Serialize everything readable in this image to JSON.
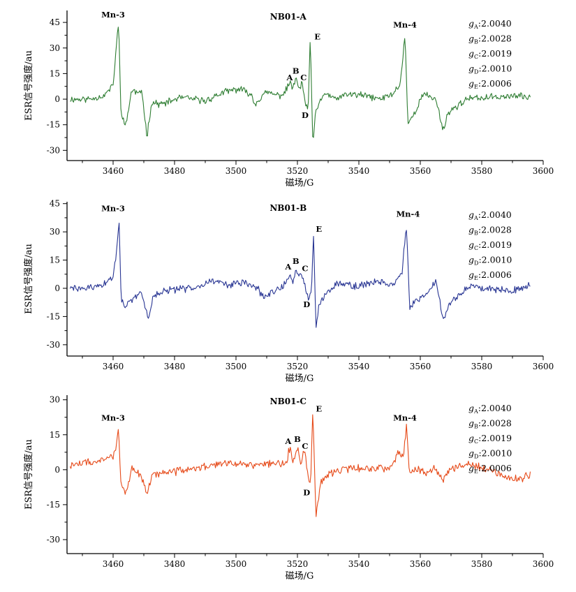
{
  "chart_data": [
    {
      "type": "line",
      "title": "NB01-A",
      "xlabel": "磁场/G",
      "ylabel": "ESR信号强度/au",
      "xlim": [
        3445,
        3600
      ],
      "ylim": [
        -36,
        52
      ],
      "xticks": [
        3460,
        3480,
        3500,
        3520,
        3540,
        3560,
        3580,
        3600
      ],
      "yticks": [
        -30,
        -15,
        0,
        15,
        30,
        45
      ],
      "color": "#2e7d32",
      "grid": false,
      "seed": 11,
      "noise": 1.6,
      "x": [
        3446,
        3452,
        3457,
        3460,
        3461,
        3461.8,
        3462.5,
        3464,
        3466,
        3469.5,
        3471,
        3472.5,
        3476,
        3482,
        3490,
        3496,
        3501,
        3505,
        3506,
        3507.5,
        3510,
        3514,
        3516,
        3517.5,
        3518.5,
        3519.5,
        3520.5,
        3521.5,
        3522.5,
        3523.5,
        3524.2,
        3525,
        3525.8,
        3527,
        3529,
        3532,
        3537,
        3542,
        3547,
        3551,
        3553.5,
        3555,
        3556,
        3557.5,
        3561,
        3565,
        3567.5,
        3569,
        3575,
        3582,
        3590,
        3596
      ],
      "values": [
        0,
        0,
        2,
        8,
        30,
        45,
        -5,
        -17,
        5,
        3,
        -22,
        -2,
        -3,
        1,
        -1,
        4,
        6,
        3,
        -3,
        0,
        4,
        2,
        4,
        10,
        6,
        13,
        5,
        10,
        -2,
        -6,
        36,
        -26,
        -10,
        -3,
        4,
        0,
        3,
        2,
        0,
        3,
        9,
        38,
        -15,
        -10,
        3,
        0,
        -18,
        -8,
        0,
        1,
        2,
        1
      ],
      "series": [
        {
          "name": ""
        }
      ],
      "annotations": {
        "peaks": [
          {
            "text": "Mn-3",
            "x": 3460,
            "y": 48
          },
          {
            "text": "Mn-4",
            "x": 3555,
            "y": 42
          },
          {
            "text": "A",
            "x": 3517.5,
            "y": 11
          },
          {
            "text": "B",
            "x": 3519.5,
            "y": 15
          },
          {
            "text": "C",
            "x": 3522,
            "y": 11
          },
          {
            "text": "D",
            "x": 3522.5,
            "y": -11
          },
          {
            "text": "E",
            "x": 3526.5,
            "y": 35
          }
        ],
        "g_values": [
          {
            "letter": "g",
            "sub": "A",
            "value": ":2.0040"
          },
          {
            "letter": "g",
            "sub": "B",
            "value": ":2.0028"
          },
          {
            "letter": "g",
            "sub": "C",
            "value": ":2.0019"
          },
          {
            "letter": "g",
            "sub": "D",
            "value": ":2.0010"
          },
          {
            "letter": "g",
            "sub": "E",
            "value": ":2.0006"
          }
        ]
      }
    },
    {
      "type": "line",
      "title": "NB01-B",
      "xlabel": "磁场/G",
      "ylabel": "ESR信号强度/au",
      "xlim": [
        3445,
        3600
      ],
      "ylim": [
        -36,
        46
      ],
      "xticks": [
        3460,
        3480,
        3500,
        3520,
        3540,
        3560,
        3580,
        3600
      ],
      "yticks": [
        -30,
        -15,
        0,
        15,
        30,
        45
      ],
      "color": "#283593",
      "grid": false,
      "seed": 29,
      "noise": 1.5,
      "x": [
        3446,
        3452,
        3457,
        3460,
        3461,
        3462,
        3462.6,
        3464,
        3466,
        3469,
        3471.5,
        3473,
        3478,
        3485,
        3492,
        3498,
        3503,
        3507,
        3509,
        3512,
        3515,
        3517.5,
        3518.5,
        3519.5,
        3520.5,
        3521.5,
        3522.5,
        3523.5,
        3524.5,
        3525.3,
        3526,
        3527,
        3529,
        3533,
        3540,
        3546,
        3551,
        3554,
        3555.5,
        3556.5,
        3558,
        3562,
        3565,
        3567.5,
        3570,
        3576,
        3583,
        3590,
        3595,
        3596
      ],
      "values": [
        0,
        0,
        2,
        6,
        18,
        36,
        -5,
        -10,
        -7,
        -2,
        -16,
        -4,
        -1,
        0,
        4,
        2,
        3,
        0,
        -5,
        -2,
        1,
        6,
        2,
        10,
        6,
        8,
        2,
        -6,
        -3,
        30,
        -23,
        -9,
        -3,
        3,
        1,
        4,
        2,
        8,
        33,
        -10,
        -8,
        -3,
        4,
        -16,
        -7,
        1,
        0,
        -1,
        1,
        3
      ],
      "series": [
        {
          "name": ""
        }
      ],
      "annotations": {
        "peaks": [
          {
            "text": "Mn-3",
            "x": 3460,
            "y": 41
          },
          {
            "text": "Mn-4",
            "x": 3556,
            "y": 38
          },
          {
            "text": "A",
            "x": 3517,
            "y": 10
          },
          {
            "text": "B",
            "x": 3519.5,
            "y": 13
          },
          {
            "text": "C",
            "x": 3522.5,
            "y": 9
          },
          {
            "text": "D",
            "x": 3523,
            "y": -10
          },
          {
            "text": "E",
            "x": 3527,
            "y": 30
          }
        ],
        "g_values": [
          {
            "letter": "g",
            "sub": "A",
            "value": ":2.0040"
          },
          {
            "letter": "g",
            "sub": "B",
            "value": ":2.0028"
          },
          {
            "letter": "g",
            "sub": "C",
            "value": ":2.0019"
          },
          {
            "letter": "g",
            "sub": "D",
            "value": ":2.0010"
          },
          {
            "letter": "g",
            "sub": "E",
            "value": ":2.0006"
          }
        ]
      }
    },
    {
      "type": "line",
      "title": "NB01-C",
      "xlabel": "磁场/G",
      "ylabel": "ESR信号强度/au",
      "xlim": [
        3445,
        3600
      ],
      "ylim": [
        -36,
        32
      ],
      "xticks": [
        3460,
        3480,
        3500,
        3520,
        3540,
        3560,
        3580,
        3600
      ],
      "yticks": [
        -30,
        -15,
        0,
        15,
        30
      ],
      "color": "#e64a19",
      "grid": false,
      "seed": 47,
      "noise": 1.4,
      "x": [
        3446,
        3452,
        3457,
        3460,
        3461,
        3461.8,
        3462.4,
        3464,
        3466,
        3469,
        3471,
        3473,
        3478,
        3485,
        3492,
        3498,
        3505,
        3511,
        3515,
        3516.8,
        3517.5,
        3518.5,
        3520,
        3521.2,
        3522.3,
        3523.5,
        3524.3,
        3525,
        3526,
        3527.5,
        3529,
        3533,
        3540,
        3546,
        3551,
        3553,
        3554.5,
        3555.5,
        3556.5,
        3558,
        3562,
        3565,
        3567.5,
        3570,
        3576,
        3583,
        3588,
        3592,
        3596
      ],
      "values": [
        2,
        3,
        4,
        6,
        10,
        19,
        -4,
        -10,
        0,
        -2,
        -10,
        -2,
        -1,
        0,
        2,
        3,
        2,
        3,
        2,
        5,
        10,
        3,
        10,
        3,
        9,
        -3,
        -7,
        26,
        -21,
        -6,
        -3,
        0,
        1,
        0,
        2,
        8,
        6,
        19,
        -2,
        0,
        -1,
        1,
        -5,
        1,
        2,
        0,
        -3,
        -4,
        -2
      ],
      "series": [
        {
          "name": ""
        }
      ],
      "annotations": {
        "peaks": [
          {
            "text": "Mn-3",
            "x": 3460,
            "y": 21
          },
          {
            "text": "Mn-4",
            "x": 3555,
            "y": 21
          },
          {
            "text": "A",
            "x": 3517,
            "y": 11
          },
          {
            "text": "B",
            "x": 3520,
            "y": 12
          },
          {
            "text": "C",
            "x": 3522.5,
            "y": 9
          },
          {
            "text": "D",
            "x": 3523,
            "y": -11
          },
          {
            "text": "E",
            "x": 3527,
            "y": 25
          }
        ],
        "g_values": [
          {
            "letter": "g",
            "sub": "A",
            "value": ":2.0040"
          },
          {
            "letter": "g",
            "sub": "B",
            "value": ":2.0028"
          },
          {
            "letter": "g",
            "sub": "C",
            "value": ":2.0019"
          },
          {
            "letter": "g",
            "sub": "D",
            "value": ":2.0010"
          },
          {
            "letter": "g",
            "sub": "E",
            "value": ":2.0006"
          }
        ]
      }
    }
  ]
}
